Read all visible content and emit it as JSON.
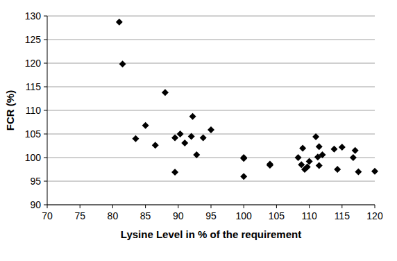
{
  "chart_data": {
    "type": "scatter",
    "x_label": "Lysine Level in % of the requirement",
    "y_label": "FCR (%)",
    "x": [
      81,
      81.5,
      83.5,
      85,
      86.5,
      88,
      89.5,
      89.5,
      90.3,
      91,
      92,
      92.2,
      92.8,
      93.8,
      95,
      100,
      100,
      100,
      104,
      104,
      108.3,
      108.8,
      109,
      109.3,
      109.7,
      110,
      111,
      111.3,
      111.5,
      111.5,
      112,
      113.8,
      114.3,
      115,
      116.7,
      117,
      117.5,
      120
    ],
    "values": [
      128.7,
      119.8,
      104,
      106.8,
      102.6,
      113.8,
      104.2,
      96.9,
      105,
      103.1,
      104.5,
      108.7,
      100.6,
      104.2,
      105.9,
      100,
      99.8,
      96,
      98.6,
      98.4,
      100,
      98.5,
      102,
      97.5,
      98,
      99.2,
      104.4,
      100.1,
      102.3,
      98.3,
      100.6,
      101.8,
      97.5,
      102.2,
      100,
      101.5,
      97,
      97.1
    ],
    "color": "#000000",
    "marker": "diamond",
    "xlim": [
      70,
      120
    ],
    "xticks": [
      70,
      75,
      80,
      85,
      90,
      95,
      100,
      105,
      110,
      115,
      120
    ],
    "ylim": [
      90,
      130
    ],
    "yticks": [
      90,
      95,
      100,
      105,
      110,
      115,
      120,
      125,
      130
    ],
    "grid": true
  }
}
